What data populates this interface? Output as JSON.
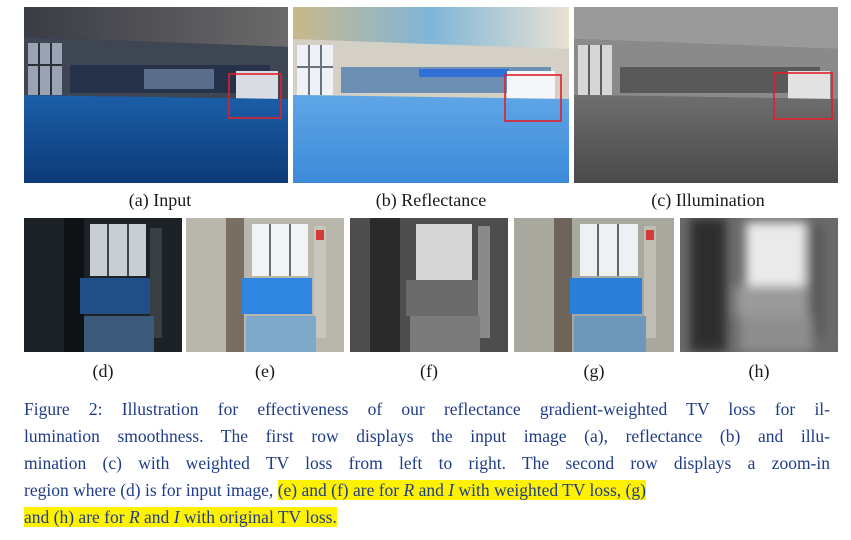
{
  "figure": {
    "top_row": [
      {
        "id": "input",
        "label": "(a) Input",
        "style": "color"
      },
      {
        "id": "reflectance",
        "label": "(b) Reflectance",
        "style": "bright"
      },
      {
        "id": "illumination",
        "label": "(c) Illumination",
        "style": "gray"
      }
    ],
    "bottom_row": [
      {
        "id": "d",
        "label": "(d)",
        "style": "zoom-dark"
      },
      {
        "id": "e",
        "label": "(e)",
        "style": "zoom-bright"
      },
      {
        "id": "f",
        "label": "(f)",
        "style": "zoom-gray"
      },
      {
        "id": "g",
        "label": "(g)",
        "style": "zoom-bright"
      },
      {
        "id": "h",
        "label": "(h)",
        "style": "zoom-blur"
      }
    ],
    "highlight_box_color": "#e0202a"
  },
  "caption": {
    "line1": "Figure 2: Illustration for effectiveness of our reflectance gradient-weighted TV loss for il-",
    "line2": "lumination smoothness. The first row displays the input image (a), reflectance (b) and illu-",
    "line3": "mination (c) with weighted TV loss from left to right. The second row displays a zoom-in",
    "line4_plain": "region where (d) is for input image, ",
    "line4_hl": [
      "(e) and (f) are for ",
      "R",
      " and ",
      "I",
      " with weighted TV loss, (g)"
    ],
    "line5_hl": [
      "and (h) are for ",
      "R",
      " and ",
      "I",
      " with original TV loss."
    ]
  },
  "colors": {
    "caption_text": "#1f3c88",
    "highlight": "#fff200"
  }
}
